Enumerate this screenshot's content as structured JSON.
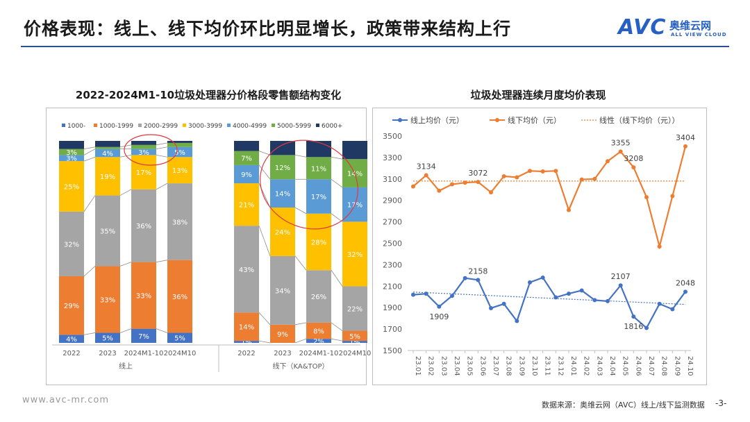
{
  "header": {
    "title": "价格表现：线上、线下均价环比明显增长，政策带来结构上行",
    "logo_main": "AVC",
    "logo_cn": "奥维云网",
    "logo_en": "ALL VIEW CLOUD"
  },
  "footer": {
    "url": "www.avc-mr.com",
    "source": "数据来源：奥维云网（AVC）线上/线下监测数据",
    "page": "-3-"
  },
  "colors": {
    "1000-": "#4472c4",
    "1000-1999": "#ed7d31",
    "2000-2999": "#a5a5a5",
    "3000-3999": "#ffc000",
    "4000-4999": "#5b9bd5",
    "5000-5999": "#70ad47",
    "6000+": "#203864",
    "online_line": "#4472c4",
    "offline_line": "#ed7d31",
    "annotation_circle": "#e0393e"
  },
  "chart_data": [
    {
      "type": "bar",
      "stacked": true,
      "percent": true,
      "title": "2022-2024M1-10垃圾处理器分价格段零售额结构变化",
      "legend_position": "top",
      "segments": [
        "1000-",
        "1000-1999",
        "2000-2999",
        "3000-3999",
        "4000-4999",
        "5000-5999",
        "6000+"
      ],
      "groups": [
        {
          "name": "线上",
          "categories": [
            "2022",
            "2023",
            "2024M1-10",
            "2024M10"
          ],
          "data": [
            {
              "1000-": 4,
              "1000-1999": 29,
              "2000-2999": 32,
              "3000-3999": 25,
              "4000-4999": 3,
              "5000-5999": 3,
              "6000+": 4
            },
            {
              "1000-": 5,
              "1000-1999": 33,
              "2000-2999": 35,
              "3000-3999": 19,
              "4000-4999": 4,
              "5000-5999": 1,
              "6000+": 3
            },
            {
              "1000-": 7,
              "1000-1999": 33,
              "2000-2999": 36,
              "3000-3999": 17,
              "4000-4999": 3,
              "5000-5999": 2,
              "6000+": 2
            },
            {
              "1000-": 5,
              "1000-1999": 36,
              "2000-2999": 38,
              "3000-3999": 13,
              "4000-4999": 5,
              "5000-5999": 2,
              "6000+": 1
            }
          ]
        },
        {
          "name": "线下（KA&TOP）",
          "categories": [
            "2022",
            "2023",
            "2024M1-10",
            "2024M10"
          ],
          "data": [
            {
              "1000-": 1,
              "1000-1999": 14,
              "2000-2999": 43,
              "3000-3999": 21,
              "4000-4999": 9,
              "5000-5999": 7,
              "6000+": 5
            },
            {
              "1000-": 0,
              "1000-1999": 9,
              "2000-2999": 34,
              "3000-3999": 24,
              "4000-4999": 14,
              "5000-5999": 12,
              "6000+": 7
            },
            {
              "1000-": 2,
              "1000-1999": 8,
              "2000-2999": 26,
              "3000-3999": 28,
              "4000-4999": 17,
              "5000-5999": 11,
              "6000+": 8
            },
            {
              "1000-": 1,
              "1000-1999": 5,
              "2000-2999": 22,
              "3000-3999": 32,
              "4000-4999": 17,
              "5000-5999": 14,
              "6000+": 9
            }
          ]
        }
      ],
      "labels": [
        [
          {
            "1000-": "4%",
            "1000-1999": "29%",
            "2000-2999": "32%",
            "3000-3999": "25%",
            "4000-4999": "3%",
            "5000-5999": "3%"
          },
          {
            "1000-": "5%",
            "1000-1999": "33%",
            "2000-2999": "35%",
            "3000-3999": "19%",
            "4000-4999": "4%"
          },
          {
            "1000-": "7%",
            "1000-1999": "33%",
            "2000-2999": "36%",
            "3000-3999": "17%",
            "4000-4999": "3%"
          },
          {
            "1000-": "5%",
            "1000-1999": "36%",
            "2000-2999": "38%",
            "3000-3999": "13%",
            "4000-4999": "5%"
          }
        ],
        [
          {
            "1000-": "1%",
            "1000-1999": "14%",
            "2000-2999": "43%",
            "3000-3999": "21%",
            "4000-4999": "9%",
            "5000-5999": "7%"
          },
          {
            "1000-": "0%",
            "1000-1999": "9%",
            "2000-2999": "34%",
            "3000-3999": "24%",
            "4000-4999": "14%",
            "5000-5999": "12%"
          },
          {
            "1000-": "2%",
            "1000-1999": "8%",
            "2000-2999": "26%",
            "3000-3999": "28%",
            "4000-4999": "17%",
            "5000-5999": "11%"
          },
          {
            "1000-": "1%",
            "1000-1999": "5%",
            "2000-2999": "22%",
            "3000-3999": "32%",
            "4000-4999": "17%",
            "5000-5999": "14%"
          }
        ]
      ]
    },
    {
      "type": "line",
      "title": "垃圾处理器连续月度均价表现",
      "legend_position": "top",
      "x": [
        "23.01",
        "23.02",
        "23.03",
        "23.04",
        "23.05",
        "23.06",
        "23.07",
        "23.08",
        "23.09",
        "23.10",
        "23.11",
        "23.12",
        "24.01",
        "24.02",
        "24.03",
        "24.04",
        "24.05",
        "24.06",
        "24.07",
        "24.08",
        "24.09",
        "24.10"
      ],
      "ylim": [
        1500,
        3500
      ],
      "yticks": [
        1500,
        1700,
        1900,
        2100,
        2300,
        2500,
        2700,
        2900,
        3100,
        3300,
        3500
      ],
      "grid": false,
      "series": [
        {
          "name": "线上均价（元）",
          "values": [
            2020,
            2030,
            1909,
            2010,
            2175,
            2158,
            1895,
            1935,
            1775,
            2135,
            2180,
            1995,
            2030,
            2060,
            1970,
            1960,
            2107,
            1816,
            1710,
            1935,
            1885,
            2048
          ],
          "labels": {
            "2": "1909",
            "5": "2158",
            "16": "2107",
            "17": "1816",
            "21": "2048"
          }
        },
        {
          "name": "线下均价（元）",
          "values": [
            3030,
            3134,
            2990,
            3050,
            3065,
            3072,
            2975,
            3125,
            3115,
            3175,
            3170,
            3175,
            2810,
            3095,
            3100,
            3265,
            3355,
            3208,
            2930,
            2470,
            2940,
            3404
          ],
          "labels": {
            "1": "3134",
            "5": "3072",
            "16": "3355",
            "17": "3208",
            "21": "3404"
          }
        }
      ],
      "trend_lines": [
        {
          "name": "线性（线下均价（元））",
          "start": 3080,
          "end": 3080
        },
        {
          "start": 2045,
          "end": 1930
        }
      ]
    }
  ]
}
